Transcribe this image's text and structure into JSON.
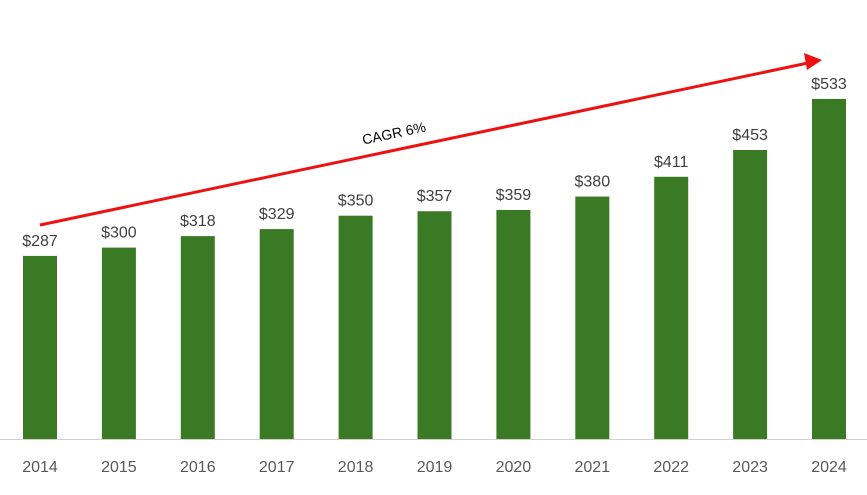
{
  "chart_data": {
    "type": "bar",
    "title": "",
    "xlabel": "",
    "ylabel": "",
    "categories": [
      "2014",
      "2015",
      "2016",
      "2017",
      "2018",
      "2019",
      "2020",
      "2021",
      "2022",
      "2023",
      "2024"
    ],
    "values": [
      287,
      300,
      318,
      329,
      350,
      357,
      359,
      380,
      411,
      453,
      533
    ],
    "data_labels": [
      "$287",
      "$300",
      "$318",
      "$329",
      "$350",
      "$357",
      "$359",
      "$380",
      "$411",
      "$453",
      "$533"
    ],
    "ylim": [
      0,
      560
    ],
    "grid": false,
    "legend": "none",
    "bar_color": "#3a7a24",
    "annotation": {
      "text": "CAGR 6%",
      "color": "#ee1111",
      "from_category": "2014",
      "to_category": "2024"
    }
  }
}
